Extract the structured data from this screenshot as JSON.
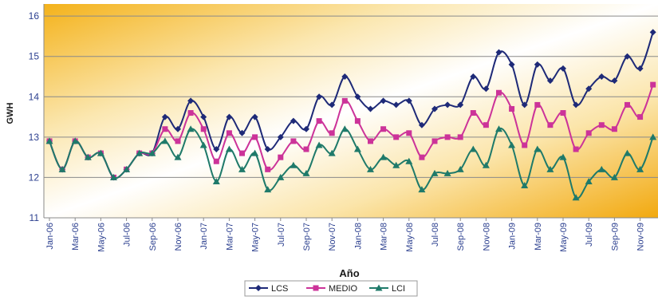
{
  "chart_data": {
    "type": "line",
    "xlabel": "Año",
    "ylabel": "GWH",
    "ylim": [
      11,
      16.3
    ],
    "yticks": [
      11,
      12,
      13,
      14,
      15,
      16
    ],
    "grid": "horizontal",
    "legend_position": "bottom",
    "categories": [
      "Jan-06",
      "Feb-06",
      "Mar-06",
      "Apr-06",
      "May-06",
      "Jun-06",
      "Jul-06",
      "Aug-06",
      "Sep-06",
      "Oct-06",
      "Nov-06",
      "Dec-06",
      "Jan-07",
      "Feb-07",
      "Mar-07",
      "Apr-07",
      "May-07",
      "Jun-07",
      "Jul-07",
      "Aug-07",
      "Sep-07",
      "Oct-07",
      "Nov-07",
      "Dec-07",
      "Jan-08",
      "Feb-08",
      "Mar-08",
      "Apr-08",
      "May-08",
      "Jun-08",
      "Jul-08",
      "Aug-08",
      "Sep-08",
      "Oct-08",
      "Nov-08",
      "Dec-08",
      "Jan-09",
      "Feb-09",
      "Mar-09",
      "Apr-09",
      "May-09",
      "Jun-09",
      "Jul-09",
      "Aug-09",
      "Sep-09",
      "Oct-09",
      "Nov-09",
      "Dec-09"
    ],
    "x_tick_labels": [
      "Jan-06",
      "Mar-06",
      "May-06",
      "Jul-06",
      "Sep-06",
      "Nov-06",
      "Jan-07",
      "Mar-07",
      "May-07",
      "Jul-07",
      "Sep-07",
      "Nov-07",
      "Jan-08",
      "Mar-08",
      "May-08",
      "Jul-08",
      "Sep-08",
      "Nov-08",
      "Jan-09",
      "Mar-09",
      "May-09",
      "Jul-09",
      "Sep-09",
      "Nov-09"
    ],
    "series": [
      {
        "name": "LCS",
        "color": "#1e2a78",
        "marker": "diamond",
        "values": [
          12.9,
          12.2,
          12.9,
          12.5,
          12.6,
          12.0,
          12.2,
          12.6,
          12.6,
          13.5,
          13.2,
          13.9,
          13.5,
          12.7,
          13.5,
          13.1,
          13.5,
          12.7,
          13.0,
          13.4,
          13.2,
          14.0,
          13.8,
          14.5,
          14.0,
          13.7,
          13.9,
          13.8,
          13.9,
          13.3,
          13.7,
          13.8,
          13.8,
          14.5,
          14.2,
          15.1,
          14.8,
          13.8,
          14.8,
          14.4,
          14.7,
          13.8,
          14.2,
          14.5,
          14.4,
          15.0,
          14.7,
          15.6
        ]
      },
      {
        "name": "MEDIO",
        "color": "#cc3399",
        "marker": "square",
        "values": [
          12.9,
          12.2,
          12.9,
          12.5,
          12.6,
          12.0,
          12.2,
          12.6,
          12.6,
          13.2,
          12.9,
          13.6,
          13.2,
          12.4,
          13.1,
          12.6,
          13.0,
          12.2,
          12.5,
          12.9,
          12.7,
          13.4,
          13.1,
          13.9,
          13.4,
          12.9,
          13.2,
          13.0,
          13.1,
          12.5,
          12.9,
          13.0,
          13.0,
          13.6,
          13.3,
          14.1,
          13.7,
          12.8,
          13.8,
          13.3,
          13.6,
          12.7,
          13.1,
          13.3,
          13.2,
          13.8,
          13.5,
          14.3
        ]
      },
      {
        "name": "LCI",
        "color": "#1f7a6a",
        "marker": "triangle",
        "values": [
          12.9,
          12.2,
          12.9,
          12.5,
          12.6,
          12.0,
          12.2,
          12.6,
          12.6,
          12.9,
          12.5,
          13.2,
          12.8,
          11.9,
          12.7,
          12.2,
          12.6,
          11.7,
          12.0,
          12.3,
          12.1,
          12.8,
          12.6,
          13.2,
          12.7,
          12.2,
          12.5,
          12.3,
          12.4,
          11.7,
          12.1,
          12.1,
          12.2,
          12.7,
          12.3,
          13.2,
          12.8,
          11.8,
          12.7,
          12.2,
          12.5,
          11.5,
          11.9,
          12.2,
          12.0,
          12.6,
          12.2,
          13.0
        ]
      }
    ]
  }
}
